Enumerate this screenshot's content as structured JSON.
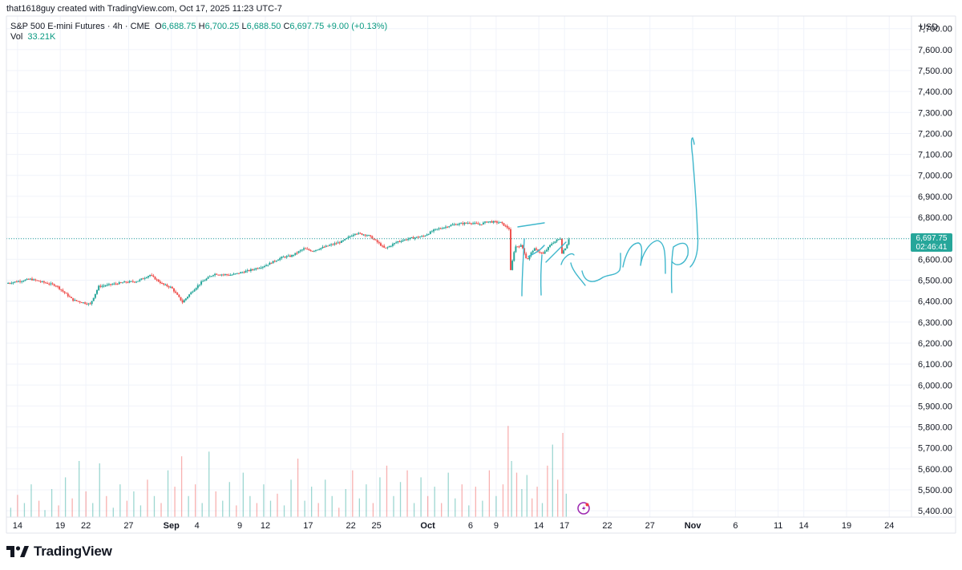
{
  "credit": "that1618guy created with TradingView.com, Oct 17, 2025 11:23 UTC-7",
  "legend": {
    "symbol": "S&P 500 E-mini Futures · 4h · CME",
    "o_label": "O",
    "o": "6,688.75",
    "h_label": "H",
    "h": "6,700.25",
    "l_label": "L",
    "l": "6,688.50",
    "c_label": "C",
    "c": "6,697.75",
    "change": "+9.00 (+0.13%)",
    "vol_label": "Vol",
    "vol": "33.21K"
  },
  "brand": "TradingView",
  "colors": {
    "up": "#26a69a",
    "down": "#ef5350",
    "drawing": "#3fb7cc",
    "grid": "#f0f3fa"
  },
  "current_price": {
    "price": "6,697.75",
    "countdown": "02:46:41"
  },
  "chart_data": {
    "type": "candlestick",
    "currency_label": "USD",
    "y_ticks": [
      "7,700.00",
      "7,600.00",
      "7,500.00",
      "7,400.00",
      "7,300.00",
      "7,200.00",
      "7,100.00",
      "7,000.00",
      "6,900.00",
      "6,800.00",
      "6,700.00",
      "6,600.00",
      "6,500.00",
      "6,400.00",
      "6,300.00",
      "6,200.00",
      "6,100.00",
      "6,000.00",
      "5,900.00",
      "5,800.00",
      "5,700.00",
      "5,600.00",
      "5,500.00",
      "5,400.00"
    ],
    "ylim": [
      5370,
      7760
    ],
    "x_ticks": [
      {
        "label": "14",
        "day": -17
      },
      {
        "label": "19",
        "day": -12
      },
      {
        "label": "22",
        "day": -9
      },
      {
        "label": "27",
        "day": -4
      },
      {
        "label": "Sep",
        "day": 1
      },
      {
        "label": "4",
        "day": 4
      },
      {
        "label": "9",
        "day": 9
      },
      {
        "label": "12",
        "day": 12
      },
      {
        "label": "17",
        "day": 17
      },
      {
        "label": "22",
        "day": 22
      },
      {
        "label": "25",
        "day": 25
      },
      {
        "label": "Oct",
        "day": 31
      },
      {
        "label": "6",
        "day": 36
      },
      {
        "label": "9",
        "day": 39
      },
      {
        "label": "14",
        "day": 44
      },
      {
        "label": "17",
        "day": 47
      },
      {
        "label": "22",
        "day": 52
      },
      {
        "label": "27",
        "day": 57
      },
      {
        "label": "Nov",
        "day": 62
      },
      {
        "label": "6",
        "day": 67
      },
      {
        "label": "11",
        "day": 72
      },
      {
        "label": "14",
        "day": 75
      },
      {
        "label": "19",
        "day": 80
      },
      {
        "label": "24",
        "day": 85
      }
    ],
    "xlim_days": [
      -18.3,
      87.6
    ],
    "price_path": [
      [
        -18.3,
        6485
      ],
      [
        -15.5,
        6505
      ],
      [
        -12.5,
        6475
      ],
      [
        -10.5,
        6405
      ],
      [
        -8.5,
        6385
      ],
      [
        -7.5,
        6470
      ],
      [
        -4.5,
        6490
      ],
      [
        -3,
        6495
      ],
      [
        -1.5,
        6525
      ],
      [
        0,
        6480
      ],
      [
        1,
        6465
      ],
      [
        2.3,
        6395
      ],
      [
        3.5,
        6450
      ],
      [
        4.5,
        6490
      ],
      [
        6,
        6530
      ],
      [
        8,
        6525
      ],
      [
        10,
        6545
      ],
      [
        12,
        6570
      ],
      [
        14,
        6610
      ],
      [
        15,
        6615
      ],
      [
        16.5,
        6650
      ],
      [
        17.5,
        6640
      ],
      [
        19,
        6660
      ],
      [
        21,
        6685
      ],
      [
        22.5,
        6725
      ],
      [
        24,
        6715
      ],
      [
        25,
        6685
      ],
      [
        26,
        6650
      ],
      [
        27.5,
        6685
      ],
      [
        29,
        6700
      ],
      [
        30.5,
        6710
      ],
      [
        31.8,
        6740
      ],
      [
        34,
        6765
      ],
      [
        36,
        6775
      ],
      [
        37,
        6765
      ],
      [
        38,
        6780
      ],
      [
        39.5,
        6775
      ],
      [
        40.5,
        6745
      ],
      [
        40.7,
        6545
      ],
      [
        41.2,
        6660
      ],
      [
        42,
        6665
      ],
      [
        42.6,
        6595
      ],
      [
        43.4,
        6650
      ],
      [
        44.5,
        6625
      ],
      [
        45.5,
        6675
      ],
      [
        46.5,
        6700
      ],
      [
        46.6,
        6625
      ],
      [
        47.2,
        6660
      ],
      [
        47.5,
        6697.75
      ]
    ],
    "volume_ylim": [
      0,
      600
    ],
    "volume_bars": [
      [
        -17.8,
        40,
        "u"
      ],
      [
        -17,
        95,
        "d"
      ],
      [
        -16.2,
        60,
        "u"
      ],
      [
        -15.4,
        140,
        "u"
      ],
      [
        -14.5,
        70,
        "d"
      ],
      [
        -13.8,
        30,
        "u"
      ],
      [
        -13,
        120,
        "u"
      ],
      [
        -12.2,
        50,
        "d"
      ],
      [
        -11.4,
        170,
        "u"
      ],
      [
        -10.6,
        80,
        "d"
      ],
      [
        -9.8,
        240,
        "u"
      ],
      [
        -9,
        110,
        "d"
      ],
      [
        -8.2,
        60,
        "u"
      ],
      [
        -7.4,
        230,
        "u"
      ],
      [
        -6.6,
        90,
        "d"
      ],
      [
        -5.8,
        40,
        "u"
      ],
      [
        -5,
        140,
        "u"
      ],
      [
        -4.2,
        70,
        "d"
      ],
      [
        -3.4,
        110,
        "u"
      ],
      [
        -2.6,
        50,
        "u"
      ],
      [
        -1.8,
        160,
        "d"
      ],
      [
        -1,
        90,
        "u"
      ],
      [
        -0.2,
        60,
        "d"
      ],
      [
        0.6,
        200,
        "u"
      ],
      [
        1.4,
        130,
        "d"
      ],
      [
        2.2,
        260,
        "d"
      ],
      [
        3,
        90,
        "u"
      ],
      [
        3.8,
        140,
        "d"
      ],
      [
        4.6,
        60,
        "u"
      ],
      [
        5.4,
        280,
        "u"
      ],
      [
        6.2,
        110,
        "d"
      ],
      [
        7,
        70,
        "u"
      ],
      [
        7.8,
        150,
        "u"
      ],
      [
        8.6,
        50,
        "d"
      ],
      [
        9.4,
        190,
        "u"
      ],
      [
        10.2,
        90,
        "u"
      ],
      [
        11,
        60,
        "d"
      ],
      [
        11.8,
        140,
        "u"
      ],
      [
        12.6,
        70,
        "u"
      ],
      [
        13.4,
        100,
        "d"
      ],
      [
        14.2,
        50,
        "u"
      ],
      [
        15,
        160,
        "u"
      ],
      [
        15.8,
        250,
        "d"
      ],
      [
        16.6,
        70,
        "u"
      ],
      [
        17.4,
        130,
        "u"
      ],
      [
        18.2,
        60,
        "d"
      ],
      [
        19,
        160,
        "u"
      ],
      [
        19.8,
        90,
        "u"
      ],
      [
        20.6,
        40,
        "d"
      ],
      [
        21.4,
        120,
        "u"
      ],
      [
        22.2,
        200,
        "d"
      ],
      [
        23,
        80,
        "u"
      ],
      [
        23.8,
        140,
        "u"
      ],
      [
        24.6,
        60,
        "d"
      ],
      [
        25.4,
        170,
        "u"
      ],
      [
        26.2,
        220,
        "d"
      ],
      [
        27,
        90,
        "u"
      ],
      [
        27.8,
        150,
        "u"
      ],
      [
        28.6,
        200,
        "d"
      ],
      [
        29.4,
        60,
        "u"
      ],
      [
        30.2,
        170,
        "u"
      ],
      [
        31,
        90,
        "d"
      ],
      [
        31.8,
        130,
        "u"
      ],
      [
        32.6,
        60,
        "d"
      ],
      [
        33.4,
        190,
        "u"
      ],
      [
        34.2,
        80,
        "u"
      ],
      [
        35,
        140,
        "d"
      ],
      [
        35.8,
        50,
        "u"
      ],
      [
        36.6,
        130,
        "d"
      ],
      [
        37.4,
        70,
        "u"
      ],
      [
        38.2,
        200,
        "d"
      ],
      [
        39,
        90,
        "u"
      ],
      [
        39.8,
        140,
        "d"
      ],
      [
        40.4,
        390,
        "d"
      ],
      [
        40.8,
        240,
        "u"
      ],
      [
        41.4,
        190,
        "d"
      ],
      [
        42,
        120,
        "u"
      ],
      [
        42.6,
        180,
        "u"
      ],
      [
        43.2,
        80,
        "d"
      ],
      [
        43.8,
        130,
        "d"
      ],
      [
        44.4,
        60,
        "u"
      ],
      [
        45,
        220,
        "d"
      ],
      [
        45.6,
        310,
        "u"
      ],
      [
        46.2,
        160,
        "d"
      ],
      [
        46.8,
        360,
        "d"
      ],
      [
        47.2,
        100,
        "u"
      ]
    ]
  }
}
